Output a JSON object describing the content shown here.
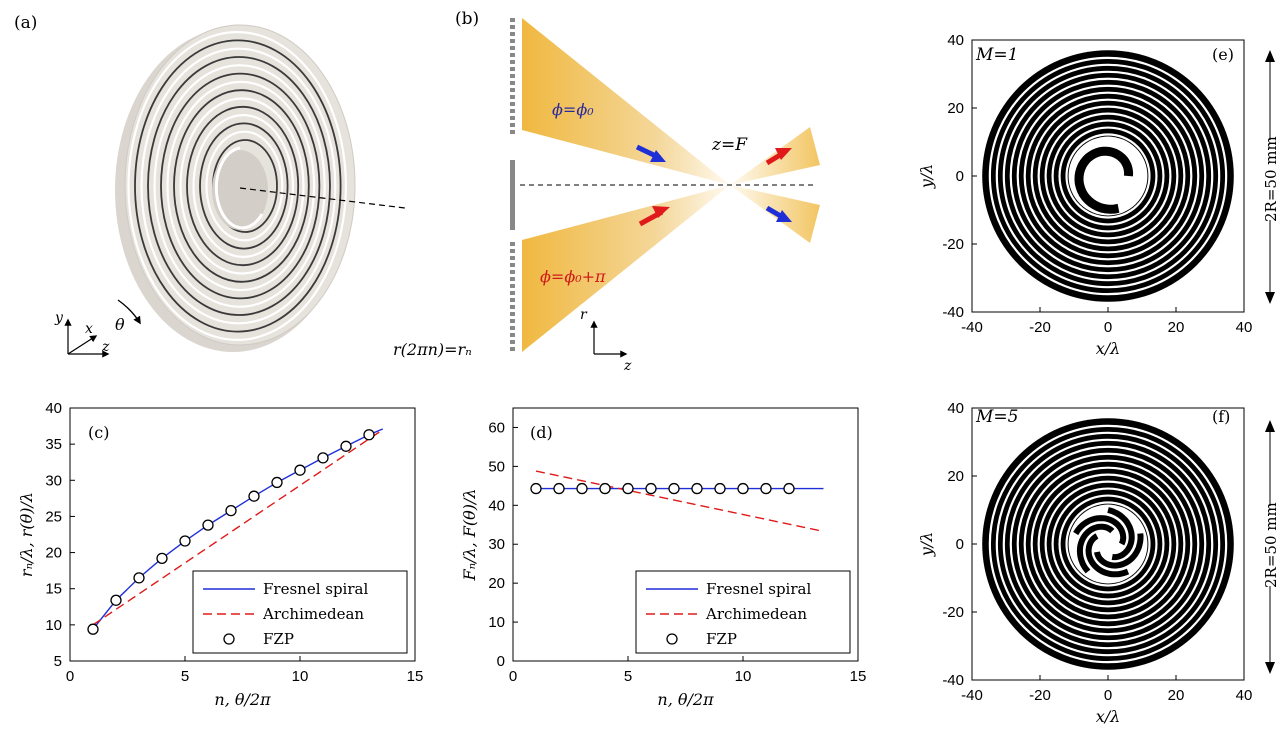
{
  "panels": {
    "a": {
      "tag": "(a)",
      "theta": "θ",
      "ax_x": "x",
      "ax_y": "y",
      "ax_z": "z"
    },
    "b": {
      "tag": "(b)",
      "phi_top": "ϕ=ϕ₀",
      "phi_bot": "ϕ=ϕ₀+π",
      "zF": "z=F",
      "rn": "r(2πn)=rₙ",
      "ax_r": "r",
      "ax_z": "z",
      "colors": {
        "gold": "#f0b840",
        "blue_arrow": "#1f2fd8",
        "red_arrow": "#e01a1a"
      }
    },
    "e": {
      "tag": "(e)",
      "mlabel": "M=1",
      "dim": "2R=50 mm"
    },
    "f": {
      "tag": "(f)",
      "mlabel": "M=5",
      "dim": "2R=50 mm"
    }
  },
  "chart_data": [
    {
      "id": "c",
      "tag": "(c)",
      "type": "line",
      "xlabel": "n, θ/2π",
      "ylabel": "rₙ/λ,  r(θ)/λ",
      "xlim": [
        0,
        15
      ],
      "ylim": [
        5,
        40
      ],
      "xticks": [
        0,
        5,
        10,
        15
      ],
      "yticks": [
        5,
        10,
        15,
        20,
        25,
        30,
        35,
        40
      ],
      "legend_position": "bottom-right",
      "series": [
        {
          "name": "Fresnel spiral",
          "style": "solid",
          "color": "#1f2fd8",
          "x": [
            1,
            2,
            3,
            4,
            5,
            6,
            7,
            8,
            9,
            10,
            11,
            12,
            13,
            13.6
          ],
          "y": [
            9.4,
            13.4,
            16.5,
            19.2,
            21.6,
            23.8,
            25.8,
            27.8,
            29.7,
            31.4,
            33.1,
            34.7,
            36.3,
            37.1
          ]
        },
        {
          "name": "Archimedean",
          "style": "dashed",
          "color": "#e01a1a",
          "x": [
            1,
            13.6
          ],
          "y": [
            10.0,
            37.0
          ]
        },
        {
          "name": "FZP",
          "style": "circles",
          "color": "#000000",
          "x": [
            1,
            2,
            3,
            4,
            5,
            6,
            7,
            8,
            9,
            10,
            11,
            12,
            13
          ],
          "y": [
            9.4,
            13.4,
            16.5,
            19.2,
            21.6,
            23.8,
            25.8,
            27.8,
            29.7,
            31.4,
            33.1,
            34.7,
            36.3
          ]
        }
      ]
    },
    {
      "id": "d",
      "tag": "(d)",
      "type": "line",
      "xlabel": "n, θ/2π",
      "ylabel": "Fₙ/λ,  F(θ)/λ",
      "xlim": [
        0,
        15
      ],
      "ylim": [
        0,
        65
      ],
      "xticks": [
        0,
        5,
        10,
        15
      ],
      "yticks": [
        0,
        10,
        20,
        30,
        40,
        50,
        60
      ],
      "legend_position": "bottom-right",
      "series": [
        {
          "name": "Fresnel spiral",
          "style": "solid",
          "color": "#1f2fd8",
          "x": [
            1,
            13.5
          ],
          "y": [
            44.3,
            44.3
          ]
        },
        {
          "name": "Archimedean",
          "style": "dashed",
          "color": "#e01a1a",
          "x": [
            1,
            13.5
          ],
          "y": [
            48.8,
            33.3
          ]
        },
        {
          "name": "FZP",
          "style": "circles",
          "color": "#000000",
          "x": [
            1,
            2,
            3,
            4,
            5,
            6,
            7,
            8,
            9,
            10,
            11,
            12
          ],
          "y": [
            44.3,
            44.3,
            44.3,
            44.3,
            44.3,
            44.3,
            44.3,
            44.3,
            44.3,
            44.3,
            44.3,
            44.3
          ]
        }
      ]
    },
    {
      "id": "e",
      "type": "heatmap",
      "xlabel": "x/λ",
      "ylabel": "y/λ",
      "xlim": [
        -40,
        40
      ],
      "ylim": [
        -40,
        40
      ],
      "xticks": [
        -40,
        -20,
        0,
        20,
        40
      ],
      "yticks": [
        -40,
        -20,
        0,
        20,
        40
      ],
      "arms": 1
    },
    {
      "id": "f",
      "type": "heatmap",
      "xlabel": "x/λ",
      "ylabel": "y/λ",
      "xlim": [
        -40,
        40
      ],
      "ylim": [
        -40,
        40
      ],
      "xticks": [
        -40,
        -20,
        0,
        20,
        40
      ],
      "yticks": [
        -40,
        -20,
        0,
        20,
        40
      ],
      "arms": 5
    }
  ]
}
